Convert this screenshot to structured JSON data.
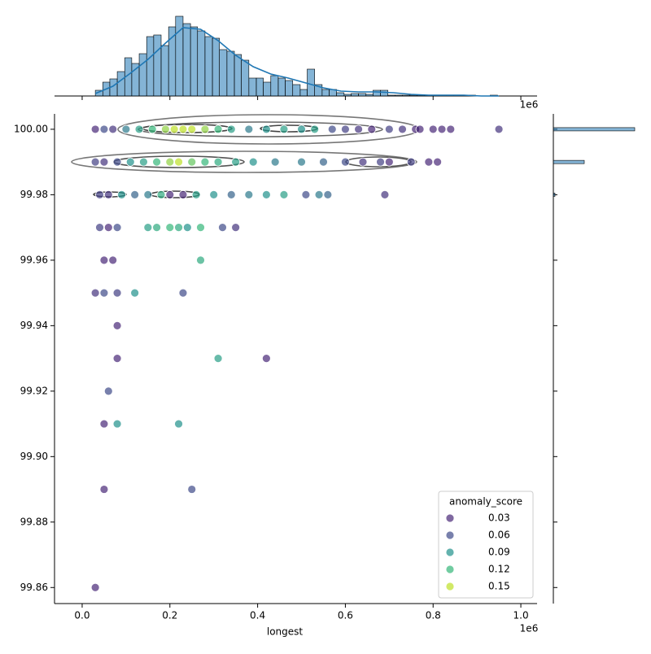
{
  "chart_data": {
    "type": "scatter",
    "xlabel": "longest",
    "x_offset_label": "1e6",
    "xlim": [
      -0.063,
      1.037
    ],
    "xticks": [
      {
        "value": 0,
        "label": "0.0"
      },
      0.2,
      0.4,
      0.6,
      0.8,
      {
        "value": 1,
        "label": "1.0"
      }
    ],
    "ylim": [
      99.8551,
      100.0047
    ],
    "yticks": [
      {
        "value": 99.86,
        "label": "99.86"
      },
      {
        "value": 99.88,
        "label": "99.88"
      },
      {
        "value": 99.9,
        "label": "99.90"
      },
      {
        "value": 99.92,
        "label": "99.92"
      },
      {
        "value": 99.94,
        "label": "99.94"
      },
      {
        "value": 99.96,
        "label": "99.96"
      },
      {
        "value": 99.98,
        "label": "99.98"
      },
      {
        "value": 100,
        "label": "100.00"
      }
    ],
    "legend": {
      "title": "anomaly_score",
      "levels": [
        0.03,
        0.06,
        0.09,
        0.12,
        0.15
      ],
      "colors": [
        "#482878",
        "#3e4a89",
        "#21918c",
        "#35b779",
        "#bddf26"
      ],
      "corner": "lower right"
    },
    "points": [
      [
        0.03,
        100,
        0.03
      ],
      [
        0.05,
        100,
        0.06
      ],
      [
        0.07,
        100,
        0.04
      ],
      [
        0.1,
        100,
        0.08
      ],
      [
        0.13,
        100,
        0.1
      ],
      [
        0.16,
        100,
        0.12
      ],
      [
        0.19,
        100,
        0.14
      ],
      [
        0.21,
        100,
        0.16
      ],
      [
        0.23,
        100,
        0.15
      ],
      [
        0.25,
        100,
        0.16
      ],
      [
        0.28,
        100,
        0.14
      ],
      [
        0.31,
        100,
        0.12
      ],
      [
        0.34,
        100,
        0.1
      ],
      [
        0.38,
        100,
        0.08
      ],
      [
        0.42,
        100,
        0.09
      ],
      [
        0.46,
        100,
        0.1
      ],
      [
        0.5,
        100,
        0.09
      ],
      [
        0.53,
        100,
        0.1
      ],
      [
        0.57,
        100,
        0.06
      ],
      [
        0.6,
        100,
        0.05
      ],
      [
        0.63,
        100,
        0.04
      ],
      [
        0.66,
        100,
        0.03
      ],
      [
        0.7,
        100,
        0.05
      ],
      [
        0.73,
        100,
        0.04
      ],
      [
        0.76,
        100,
        0.02
      ],
      [
        0.77,
        100,
        0.01
      ],
      [
        0.8,
        100,
        0.02
      ],
      [
        0.82,
        100,
        0.01
      ],
      [
        0.84,
        100,
        0.01
      ],
      [
        0.95,
        100,
        0.04
      ],
      [
        0.03,
        99.99,
        0.05
      ],
      [
        0.05,
        99.99,
        0.04
      ],
      [
        0.08,
        99.99,
        0.06
      ],
      [
        0.11,
        99.99,
        0.09
      ],
      [
        0.14,
        99.99,
        0.1
      ],
      [
        0.17,
        99.99,
        0.12
      ],
      [
        0.2,
        99.99,
        0.14
      ],
      [
        0.22,
        99.99,
        0.15
      ],
      [
        0.25,
        99.99,
        0.13
      ],
      [
        0.28,
        99.99,
        0.12
      ],
      [
        0.31,
        99.99,
        0.11
      ],
      [
        0.35,
        99.99,
        0.1
      ],
      [
        0.39,
        99.99,
        0.09
      ],
      [
        0.44,
        99.99,
        0.08
      ],
      [
        0.5,
        99.99,
        0.08
      ],
      [
        0.55,
        99.99,
        0.07
      ],
      [
        0.6,
        99.99,
        0.06
      ],
      [
        0.64,
        99.99,
        0.04
      ],
      [
        0.68,
        99.99,
        0.05
      ],
      [
        0.7,
        99.99,
        0.03
      ],
      [
        0.75,
        99.99,
        0.05
      ],
      [
        0.79,
        99.99,
        0.02
      ],
      [
        0.81,
        99.99,
        0.01
      ],
      [
        0.04,
        99.98,
        0.05
      ],
      [
        0.06,
        99.98,
        0.04
      ],
      [
        0.09,
        99.98,
        0.09
      ],
      [
        0.12,
        99.98,
        0.07
      ],
      [
        0.15,
        99.98,
        0.08
      ],
      [
        0.18,
        99.98,
        0.11
      ],
      [
        0.2,
        99.98,
        0.02
      ],
      [
        0.23,
        99.98,
        0.03
      ],
      [
        0.26,
        99.98,
        0.1
      ],
      [
        0.3,
        99.98,
        0.09
      ],
      [
        0.34,
        99.98,
        0.07
      ],
      [
        0.38,
        99.98,
        0.08
      ],
      [
        0.42,
        99.98,
        0.09
      ],
      [
        0.46,
        99.98,
        0.1
      ],
      [
        0.51,
        99.98,
        0.06
      ],
      [
        0.54,
        99.98,
        0.08
      ],
      [
        0.56,
        99.98,
        0.07
      ],
      [
        0.69,
        99.98,
        0.04
      ],
      [
        0.04,
        99.97,
        0.05
      ],
      [
        0.06,
        99.97,
        0.03
      ],
      [
        0.08,
        99.97,
        0.06
      ],
      [
        0.15,
        99.97,
        0.1
      ],
      [
        0.17,
        99.97,
        0.11
      ],
      [
        0.2,
        99.97,
        0.12
      ],
      [
        0.22,
        99.97,
        0.11
      ],
      [
        0.24,
        99.97,
        0.09
      ],
      [
        0.27,
        99.97,
        0.12
      ],
      [
        0.32,
        99.97,
        0.06
      ],
      [
        0.35,
        99.97,
        0.04
      ],
      [
        0.05,
        99.96,
        0.03
      ],
      [
        0.07,
        99.96,
        0.01
      ],
      [
        0.27,
        99.96,
        0.11
      ],
      [
        0.03,
        99.95,
        0.04
      ],
      [
        0.05,
        99.95,
        0.06
      ],
      [
        0.08,
        99.95,
        0.05
      ],
      [
        0.12,
        99.95,
        0.09
      ],
      [
        0.23,
        99.95,
        0.06
      ],
      [
        0.08,
        99.94,
        0.01
      ],
      [
        0.08,
        99.93,
        0.02
      ],
      [
        0.31,
        99.93,
        0.1
      ],
      [
        0.42,
        99.93,
        0.02
      ],
      [
        0.06,
        99.92,
        0.06
      ],
      [
        0.05,
        99.91,
        0.03
      ],
      [
        0.08,
        99.91,
        0.09
      ],
      [
        0.22,
        99.91,
        0.09
      ],
      [
        0.05,
        99.89,
        0.02
      ],
      [
        0.25,
        99.89,
        0.06
      ],
      [
        0.03,
        99.86,
        0.02
      ]
    ],
    "top_hist": {
      "color": "#1f77b4",
      "ylim": [
        0,
        100
      ],
      "bins": [
        0.03,
        0.047,
        0.063,
        0.08,
        0.097,
        0.113,
        0.13,
        0.147,
        0.163,
        0.18,
        0.197,
        0.213,
        0.23,
        0.247,
        0.263,
        0.28,
        0.297,
        0.313,
        0.33,
        0.347,
        0.363,
        0.38,
        0.397,
        0.413,
        0.43,
        0.447,
        0.463,
        0.48,
        0.497,
        0.513,
        0.53,
        0.547,
        0.563,
        0.58,
        0.597,
        0.613,
        0.63,
        0.647,
        0.663,
        0.68,
        0.697,
        0.713,
        0.73,
        0.747,
        0.763,
        0.78,
        0.797,
        0.813,
        0.83,
        0.847,
        0.863,
        0.88,
        0.897,
        0.913,
        0.93,
        0.947
      ],
      "counts": [
        7,
        17,
        21,
        30,
        47,
        40,
        52,
        73,
        75,
        62,
        85,
        98,
        89,
        85,
        80,
        73,
        71,
        57,
        55,
        51,
        44,
        22,
        22,
        17,
        25,
        22,
        19,
        14,
        8,
        33,
        14,
        8,
        8,
        4,
        2,
        3,
        3,
        2,
        7,
        7,
        1,
        1,
        1,
        1,
        1,
        1,
        1,
        1,
        1,
        1,
        1,
        1,
        0,
        0,
        1
      ],
      "kde_x": [
        0.03,
        0.07,
        0.11,
        0.15,
        0.19,
        0.23,
        0.27,
        0.31,
        0.35,
        0.39,
        0.43,
        0.47,
        0.51,
        0.55,
        0.59,
        0.63,
        0.67,
        0.71,
        0.75,
        0.79,
        0.83,
        0.87,
        0.91,
        0.95
      ],
      "kde_y": [
        3,
        12,
        28,
        45,
        65,
        84,
        82,
        68,
        50,
        36,
        27,
        22,
        16,
        10,
        6,
        5,
        5,
        4,
        2,
        1,
        1,
        1,
        0,
        0
      ]
    },
    "right_hist": {
      "color": "#1f77b4",
      "xlim": [
        0,
        100
      ],
      "bins": [
        99.9795,
        99.9805,
        99.9895,
        99.9905,
        99.9995,
        100.0005
      ],
      "counts": [
        2,
        0,
        38,
        0,
        100
      ]
    }
  }
}
